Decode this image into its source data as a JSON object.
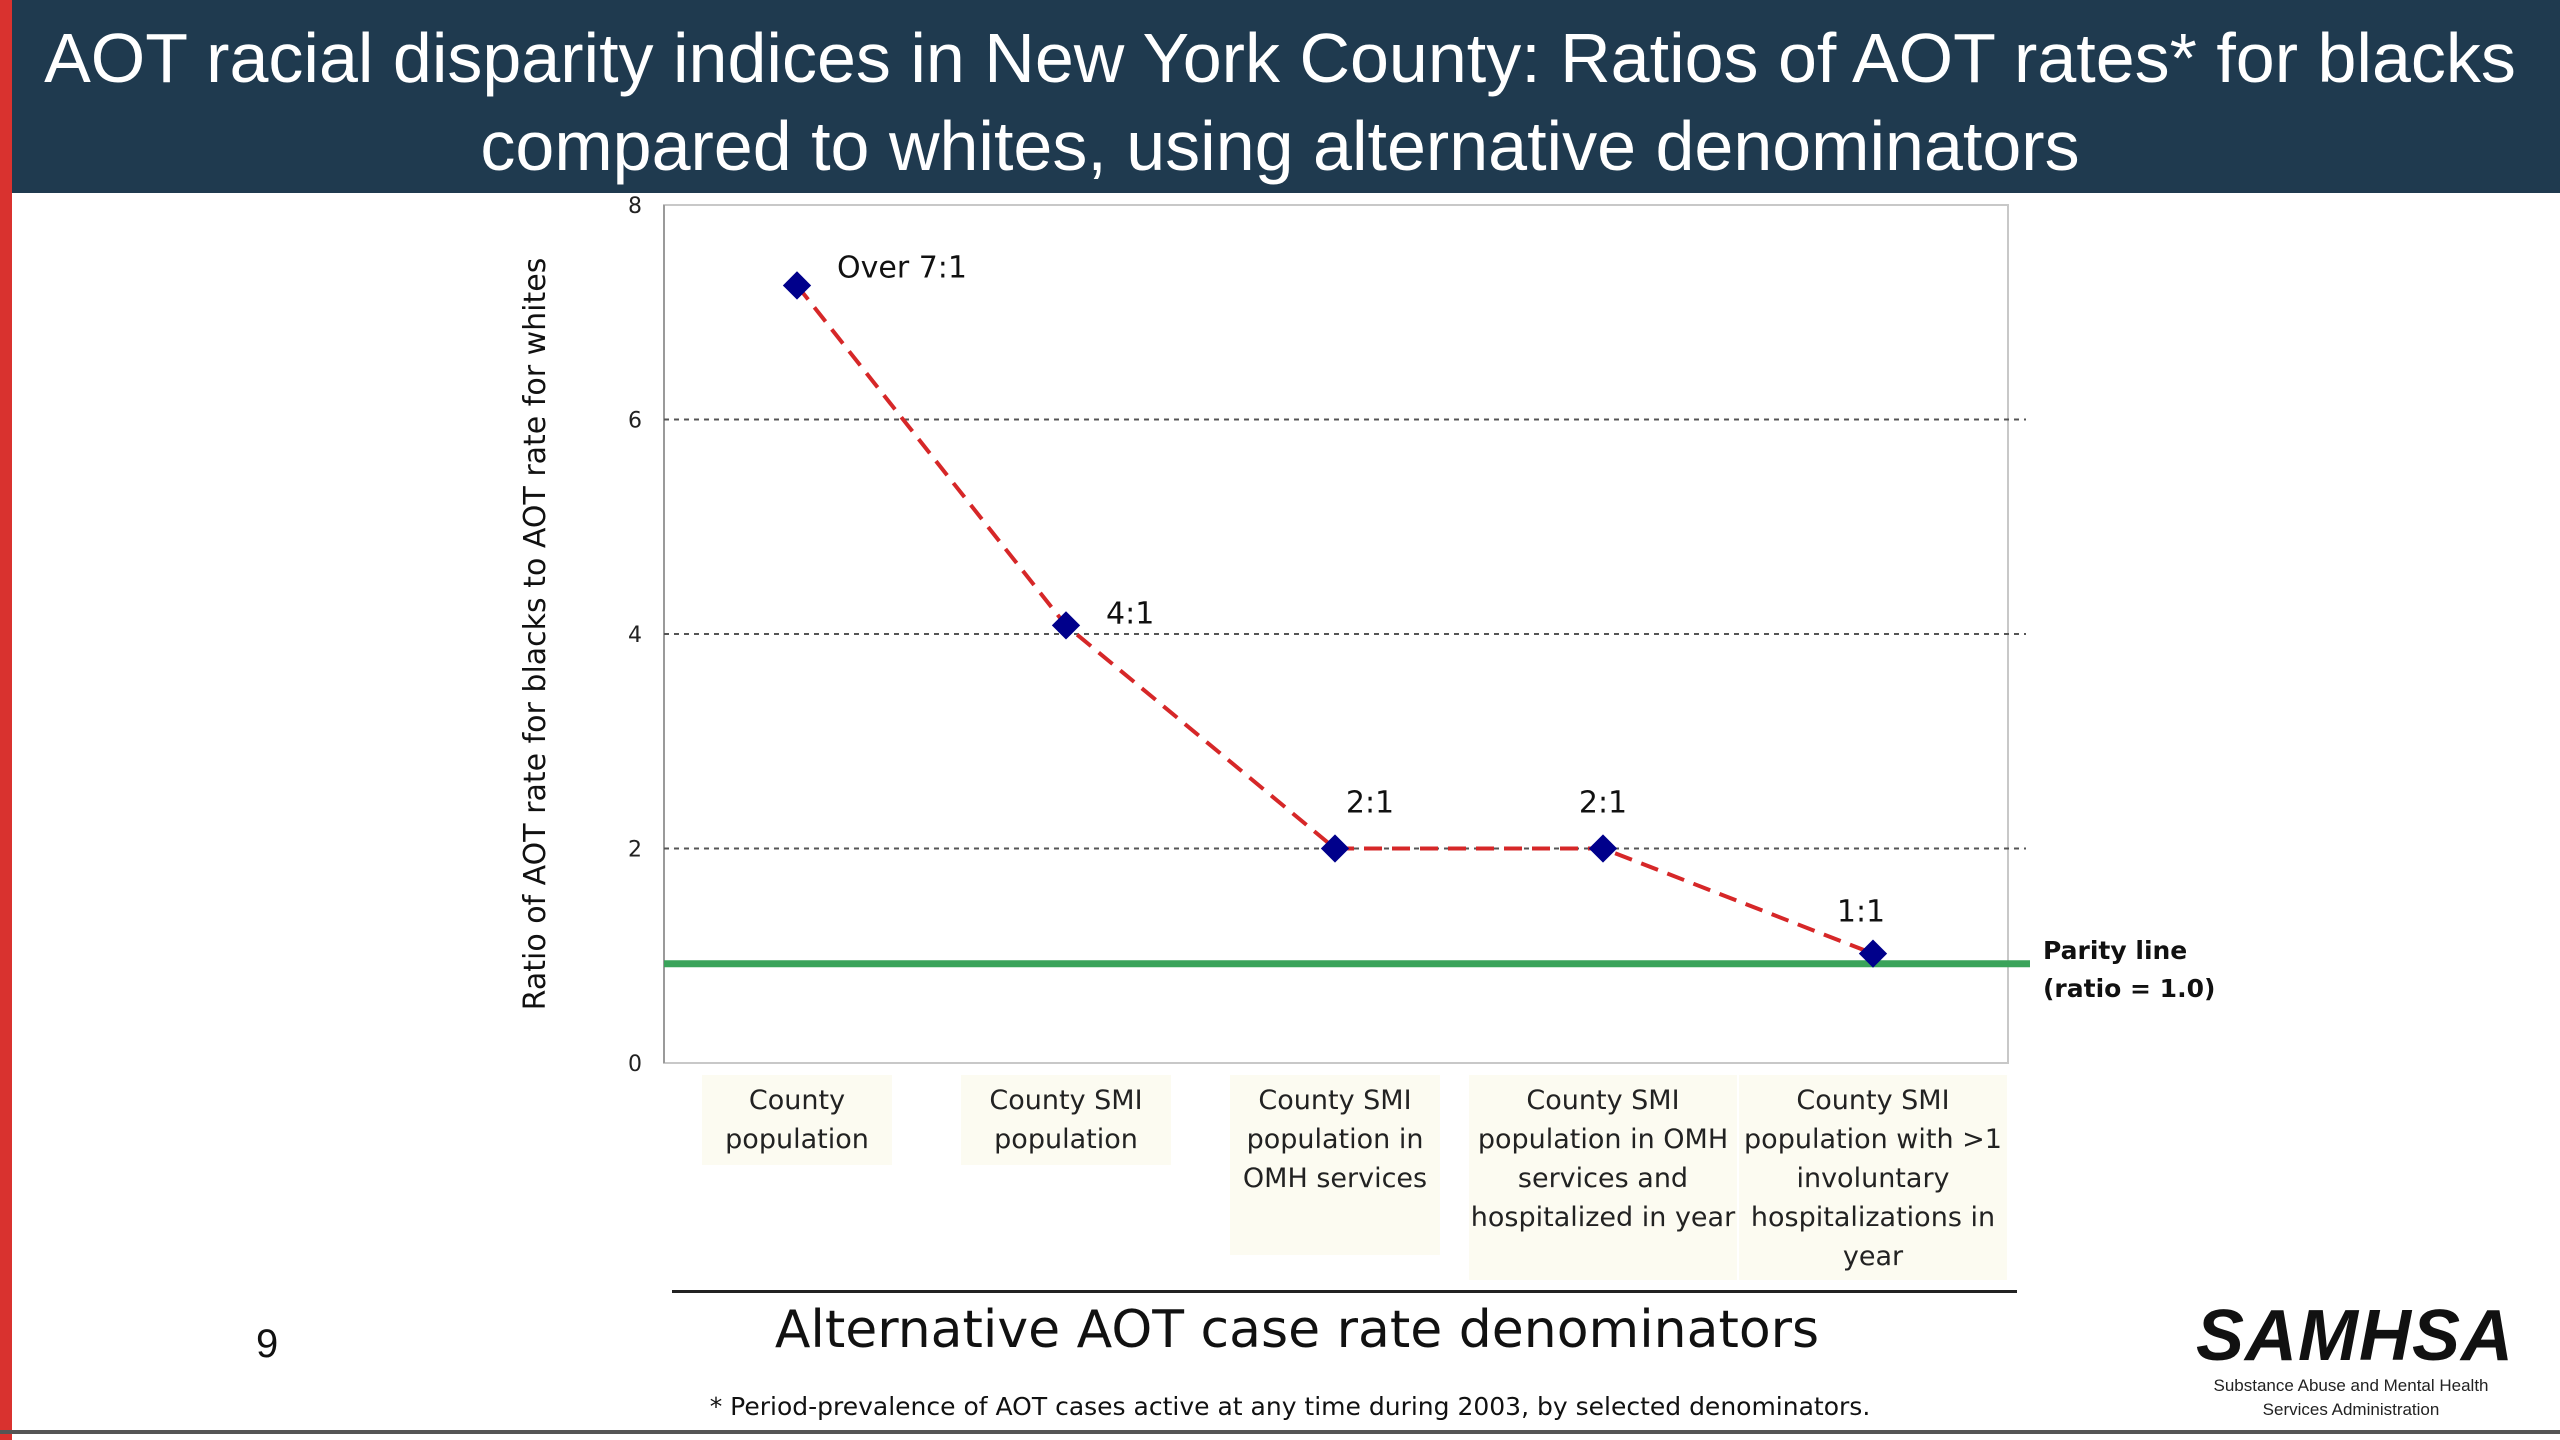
{
  "slide": {
    "title": "AOT racial disparity indices in New York County: Ratios of AOT rates* for blacks compared to whites, using alternative denominators",
    "page_number": "9",
    "footnote": "* Period-prevalence of AOT cases active at any time during 2003, by selected denominators.",
    "logo": {
      "name": "SAMHSA",
      "subtitle_line1": "Substance Abuse and Mental Health",
      "subtitle_line2": "Services Administration"
    },
    "colors": {
      "header": "#1f3a4f",
      "accent": "#d9322f",
      "series_line": "#d62728",
      "marker": "#00008b",
      "parity": "#3aa35a",
      "category_box": "#fcfbf1"
    }
  },
  "chart_data": {
    "type": "line",
    "title": "",
    "xlabel": "Alternative AOT case rate denominators",
    "ylabel": "Ratio of AOT rate for blacks to AOT rate for whites",
    "ylim": [
      0,
      8
    ],
    "yticks": [
      "0",
      "2",
      "4",
      "6",
      "8"
    ],
    "grid": "dashed horizontal at 2, 4, 6",
    "categories": [
      "County population",
      "County SMI population",
      "County SMI population in OMH services",
      "County SMI population in OMH services and hospitalized in year",
      "County SMI population with >1 involuntary hospitalizations in year"
    ],
    "series": [
      {
        "values": [
          7.25,
          4.08,
          2.0,
          2.0,
          1.02
        ],
        "point_labels": [
          "Over 7:1",
          "4:1",
          "2:1",
          "2:1",
          "1:1"
        ]
      }
    ],
    "reference_line": {
      "value": 1.0,
      "label_line1": "Parity line",
      "label_line2": "(ratio = 1.0)"
    }
  }
}
